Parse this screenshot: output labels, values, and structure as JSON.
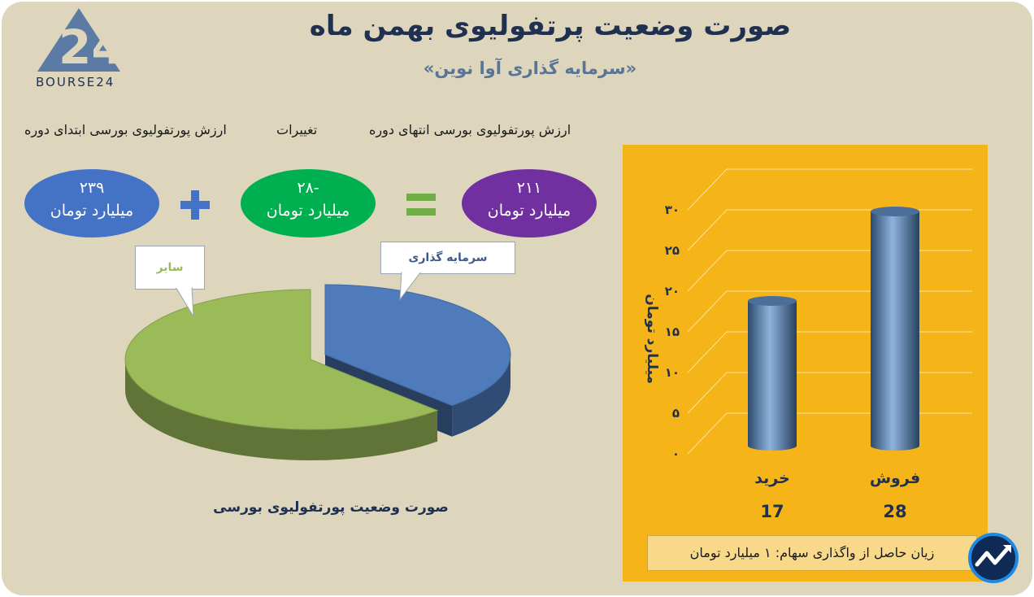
{
  "header": {
    "title": "صورت وضعیت پرتفولیوی بهمن ماه",
    "subtitle": "«سرمایه گذاری آوا نوین»",
    "logo_text": "BOURSE24"
  },
  "summary": {
    "labels": {
      "end": "ارزش پورتفولیوی بورسی انتهای دوره",
      "change": "تغییرات",
      "start": "ارزش پورتفولیوی بورسی ابتدای دوره"
    },
    "end_value": "۲۱۱",
    "change_value": "-۲۸",
    "start_value": "۲۳۹",
    "unit": "میلیارد تومان",
    "colors": {
      "end": "#7030a0",
      "change": "#00b050",
      "start": "#4472c4",
      "operators": "#4472c4",
      "equals": "#70ad47"
    }
  },
  "chart_data": [
    {
      "type": "pie",
      "title": "صورت وضعیت پورتفولیوی بورسی",
      "slices": [
        {
          "label": "سرمایه گذاری",
          "value": 0.38,
          "color": "#4f7bbb"
        },
        {
          "label": "سایر",
          "value": 0.62,
          "color": "#9bbb59"
        }
      ]
    },
    {
      "type": "bar",
      "categories": [
        "خرید",
        "فروش"
      ],
      "values": [
        17,
        28
      ],
      "value_labels": [
        "17",
        "28"
      ],
      "ylabel": "میلیارد تومان",
      "ylim": [
        0,
        30
      ],
      "yticks": [
        "۰",
        "۵",
        "۱۰",
        "۱۵",
        "۲۰",
        "۲۵",
        "۳۰"
      ],
      "grid": true,
      "bar_color": "#3f6a9c",
      "background": "#f5b417"
    }
  ],
  "footer": {
    "note": "زیان حاصل از واگذاری سهام: ۱ میلیارد تومان"
  }
}
